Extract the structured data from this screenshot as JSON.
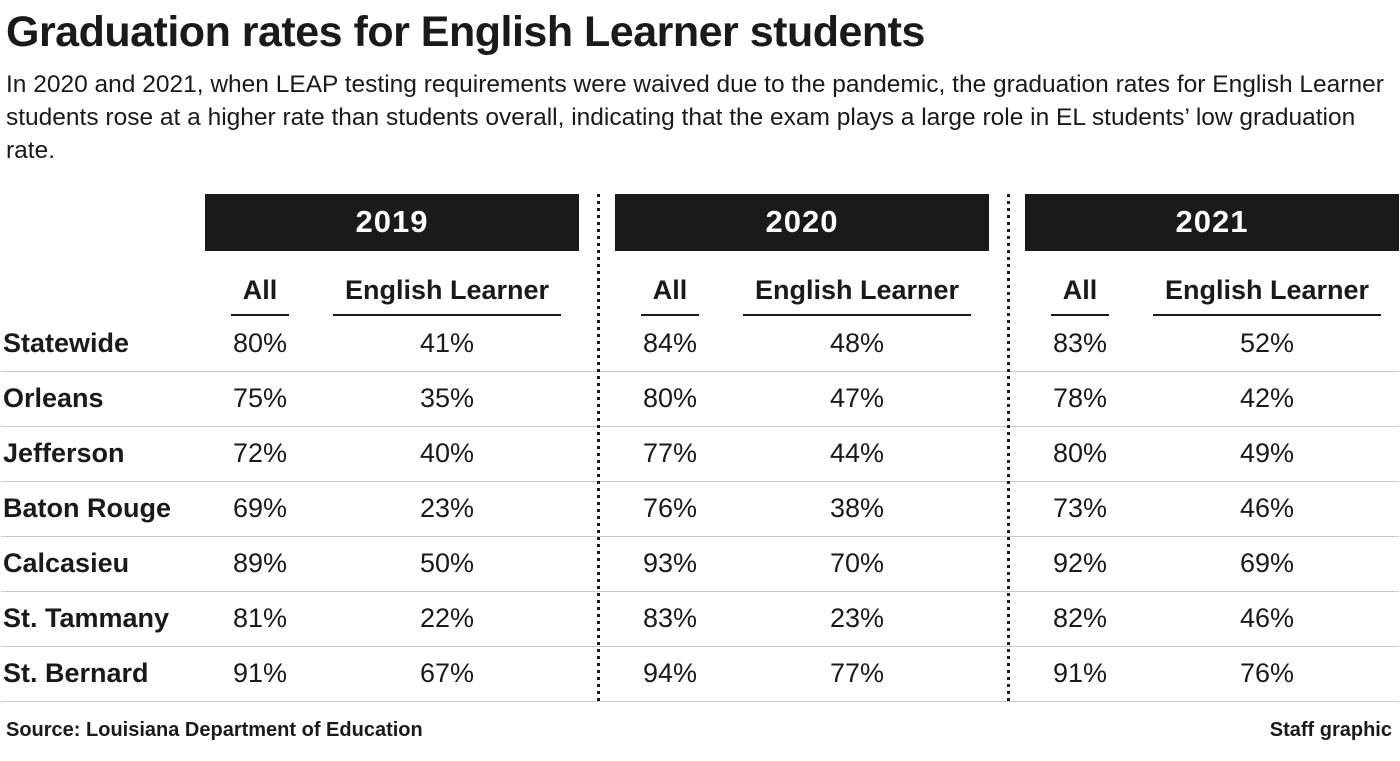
{
  "colors": {
    "header_bar": "#1a1a1a",
    "text": "#1a1a1a",
    "row_line": "#c9c9c9",
    "background": "#ffffff"
  },
  "chart_data": {
    "type": "table",
    "title": "Graduation rates for English Learner students",
    "subtitle": "In 2020 and 2021, when LEAP testing requirements were waived due to the pandemic, the graduation rates for English Learner students rose at a higher rate than students overall, indicating that the exam plays a large role in EL students’ low graduation rate.",
    "year_groups": [
      "2019",
      "2020",
      "2021"
    ],
    "sub_columns": [
      "All",
      "English Learner"
    ],
    "rows": [
      {
        "label": "Statewide",
        "values": [
          "80%",
          "41%",
          "84%",
          "48%",
          "83%",
          "52%"
        ]
      },
      {
        "label": "Orleans",
        "values": [
          "75%",
          "35%",
          "80%",
          "47%",
          "78%",
          "42%"
        ]
      },
      {
        "label": "Jefferson",
        "values": [
          "72%",
          "40%",
          "77%",
          "44%",
          "80%",
          "49%"
        ]
      },
      {
        "label": "Baton Rouge",
        "values": [
          "69%",
          "23%",
          "76%",
          "38%",
          "73%",
          "46%"
        ]
      },
      {
        "label": "Calcasieu",
        "values": [
          "89%",
          "50%",
          "93%",
          "70%",
          "92%",
          "69%"
        ]
      },
      {
        "label": "St. Tammany",
        "values": [
          "81%",
          "22%",
          "83%",
          "23%",
          "82%",
          "46%"
        ]
      },
      {
        "label": "St. Bernard",
        "values": [
          "91%",
          "67%",
          "94%",
          "77%",
          "91%",
          "76%"
        ]
      }
    ],
    "source": "Source: Louisiana Department of Education",
    "credit": "Staff graphic"
  }
}
